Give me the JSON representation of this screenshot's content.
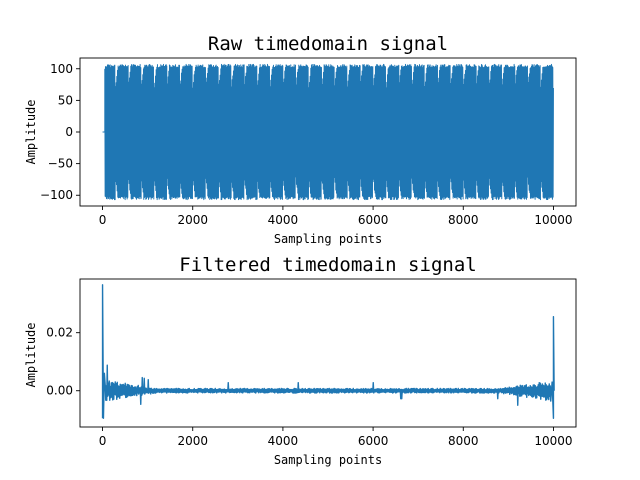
{
  "figure": {
    "background": "#ffffff",
    "line_color": "#1f77b4"
  },
  "chart_data": [
    {
      "type": "line",
      "title": "Raw timedomain signal",
      "xlabel": "Sampling points",
      "ylabel": "Amplitude",
      "xlim": [
        -500,
        10500
      ],
      "ylim": [
        -117,
        117
      ],
      "xticks": [
        0,
        2000,
        4000,
        6000,
        8000,
        10000
      ],
      "yticks": [
        100,
        50,
        0,
        -50,
        -100
      ],
      "ytick_labels": [
        "100",
        "50",
        "0",
        "−50",
        "−100"
      ],
      "grid": false,
      "legend": "none",
      "signal": {
        "n_points": 10000,
        "start": 0,
        "pre_offset_value": 0,
        "onset": 50,
        "amplitude_range": [
          -107,
          107
        ],
        "modulation_cycles": 35
      }
    },
    {
      "type": "line",
      "title": "Filtered timedomain signal",
      "xlabel": "Sampling points",
      "ylabel": "Amplitude",
      "xlim": [
        -500,
        10500
      ],
      "ylim": [
        -0.0125,
        0.0385
      ],
      "xticks": [
        0,
        2000,
        4000,
        6000,
        8000,
        10000
      ],
      "yticks": [
        0.02,
        0.0
      ],
      "ytick_labels": [
        "0.02",
        "0.00"
      ],
      "grid": false,
      "legend": "none",
      "signal": {
        "n_points": 10000,
        "spike_start": 0.0365,
        "spike_start_min": -0.0095,
        "spike_end": 0.0255,
        "spike_end_min": -0.0095,
        "baseline_noise": 0.0008,
        "edge_noise": 0.003
      }
    }
  ]
}
